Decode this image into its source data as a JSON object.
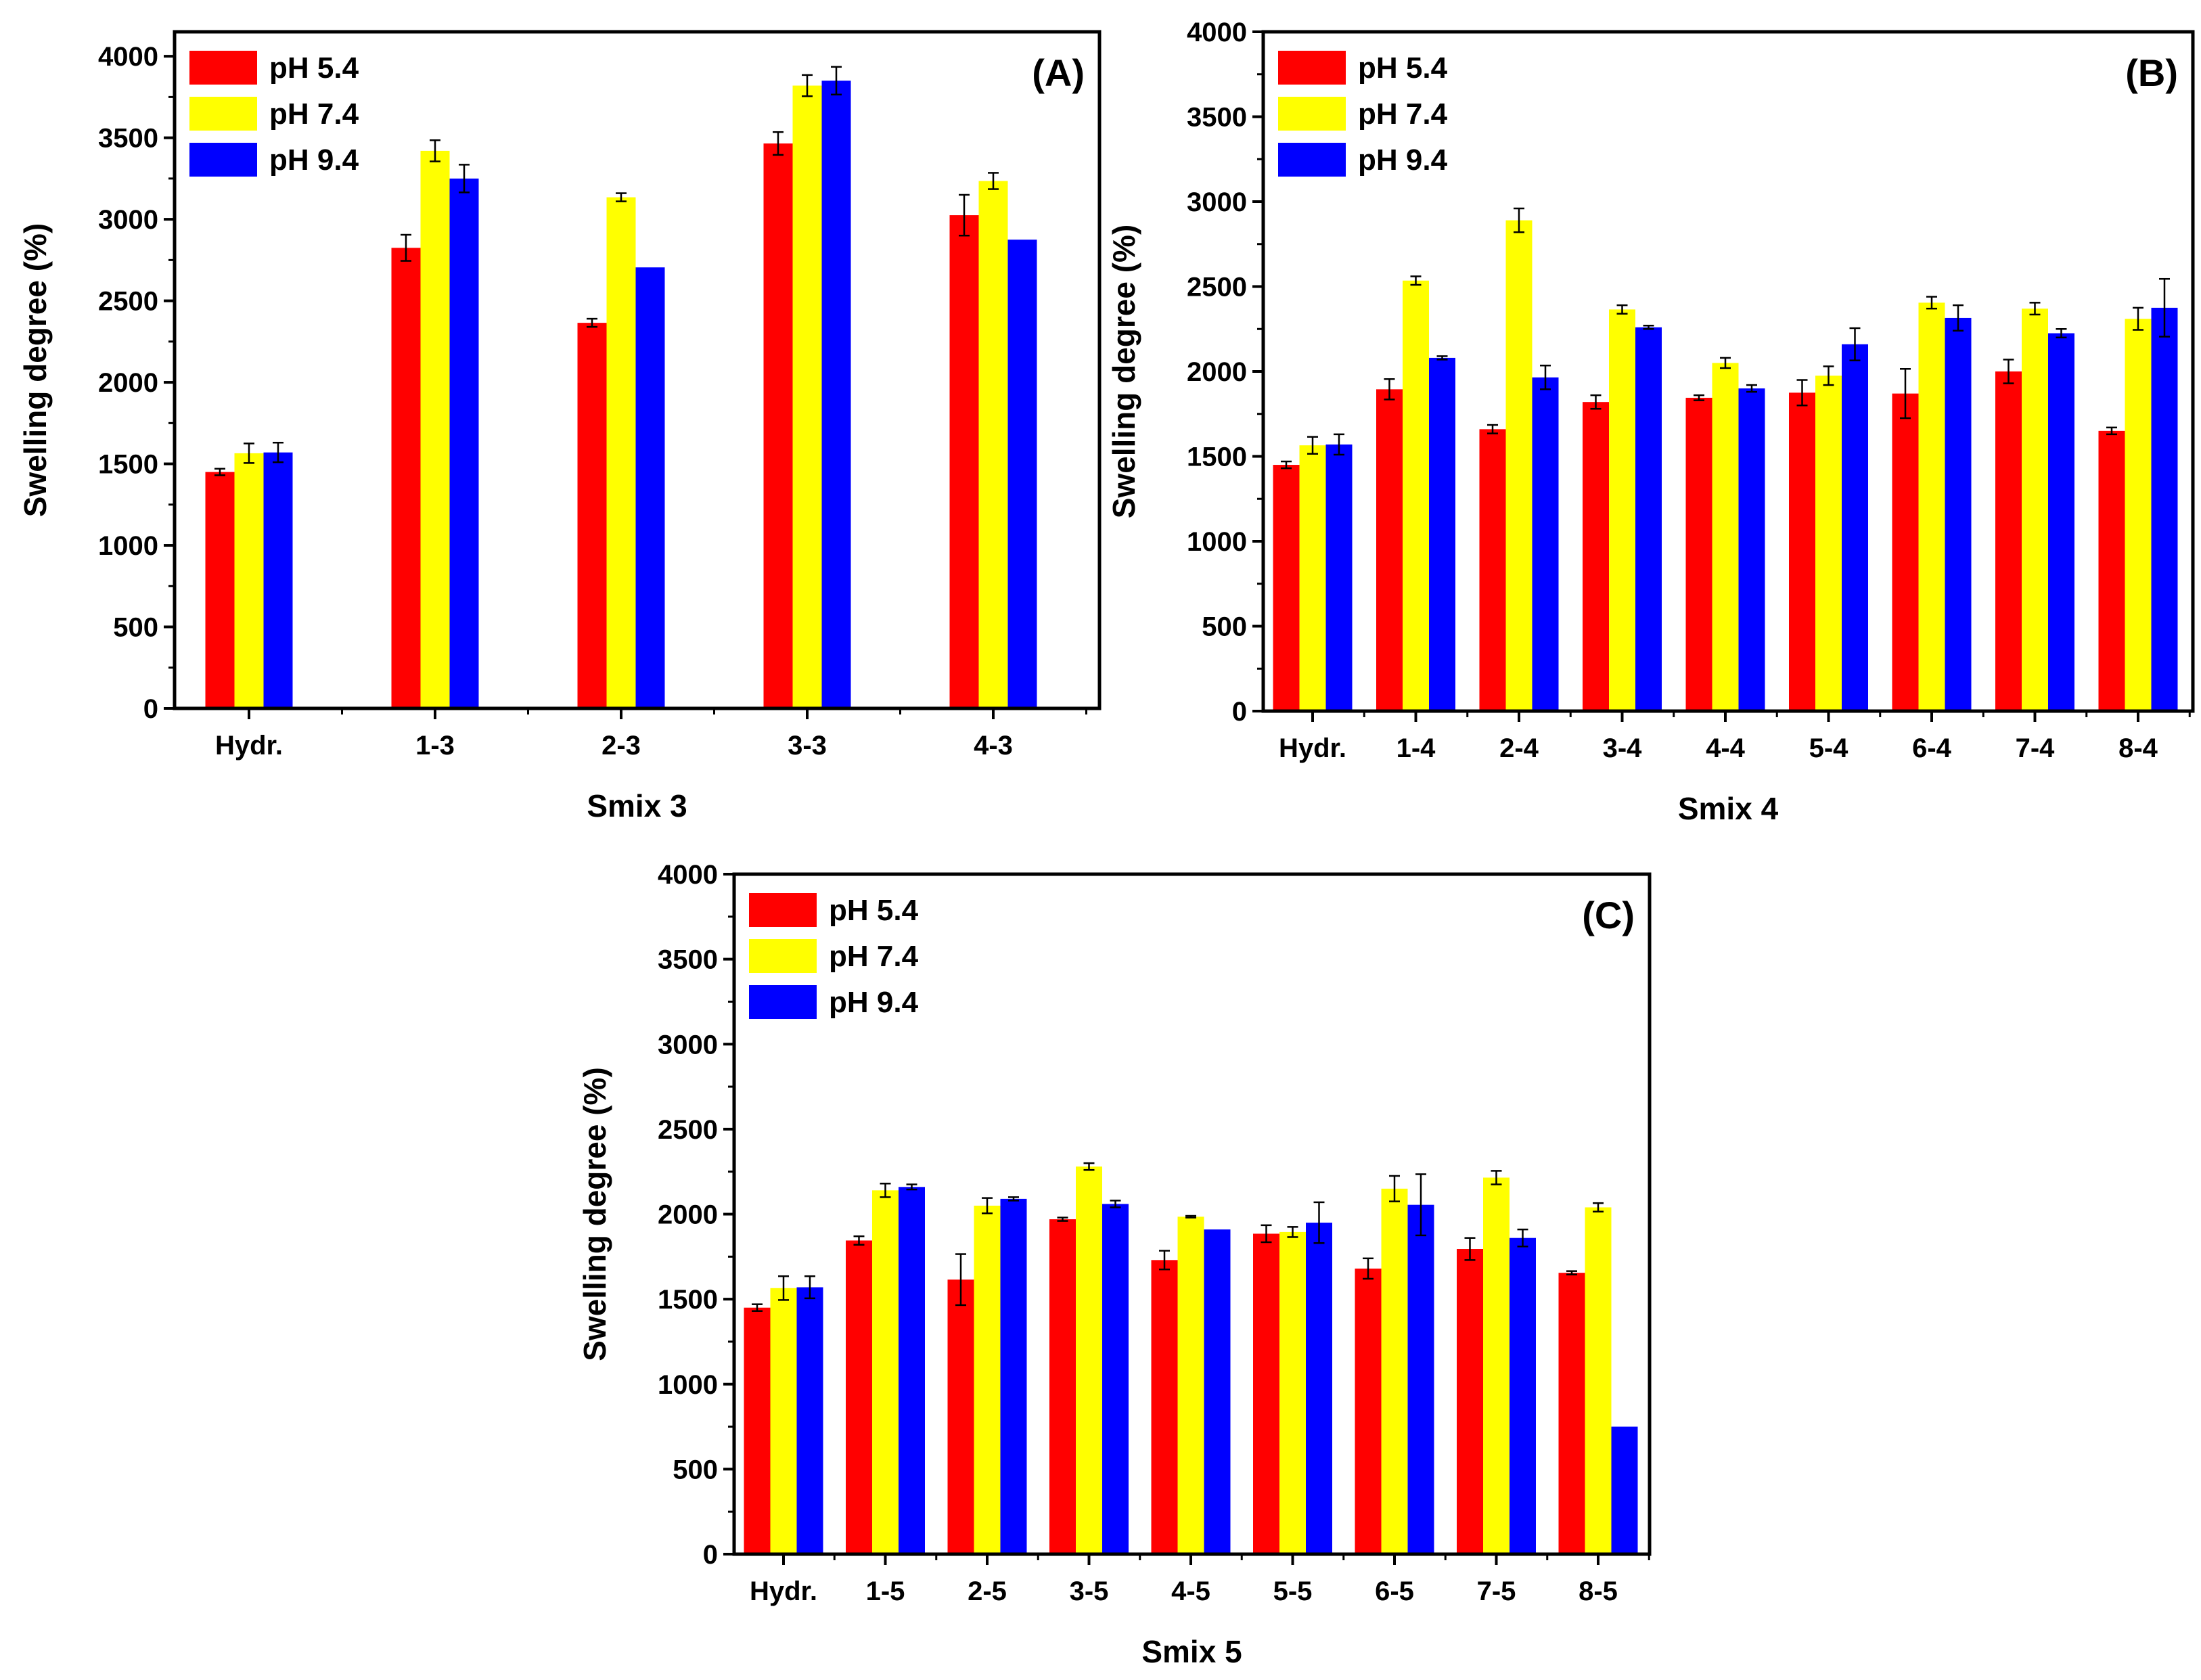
{
  "chart_data": [
    {
      "type": "bar",
      "panel_label": "(A)",
      "xlabel": "Smix 3",
      "ylabel": "Swelling degree (%)",
      "ylim": [
        0,
        4150
      ],
      "yticks": [
        0,
        500,
        1000,
        1500,
        2000,
        2500,
        3000,
        3500,
        4000
      ],
      "categories": [
        "Hydr.",
        "1-3",
        "2-3",
        "3-3",
        "4-3"
      ],
      "series": [
        {
          "name": "pH 5.4",
          "color": "#ff0000",
          "values": [
            1450,
            2825,
            2365,
            3465,
            3025
          ],
          "errors": [
            20,
            80,
            25,
            70,
            125
          ]
        },
        {
          "name": "pH 7.4",
          "color": "#ffff00",
          "values": [
            1565,
            3420,
            3135,
            3820,
            3235
          ],
          "errors": [
            60,
            65,
            25,
            65,
            50
          ]
        },
        {
          "name": "pH 9.4",
          "color": "#0000ff",
          "values": [
            1570,
            3250,
            2705,
            3850,
            2875
          ],
          "errors": [
            60,
            85,
            0,
            85,
            0
          ]
        }
      ]
    },
    {
      "type": "bar",
      "panel_label": "(B)",
      "xlabel": "Smix 4",
      "ylabel": "Swelling degree (%)",
      "ylim": [
        0,
        4000
      ],
      "yticks": [
        0,
        500,
        1000,
        1500,
        2000,
        2500,
        3000,
        3500,
        4000
      ],
      "categories": [
        "Hydr.",
        "1-4",
        "2-4",
        "3-4",
        "4-4",
        "5-4",
        "6-4",
        "7-4",
        "8-4"
      ],
      "series": [
        {
          "name": "pH 5.4",
          "color": "#ff0000",
          "values": [
            1450,
            1895,
            1660,
            1820,
            1845,
            1875,
            1870,
            2000,
            1650
          ],
          "errors": [
            20,
            60,
            25,
            40,
            15,
            75,
            145,
            70,
            20
          ]
        },
        {
          "name": "pH 7.4",
          "color": "#ffff00",
          "values": [
            1565,
            2535,
            2890,
            2365,
            2050,
            1975,
            2405,
            2370,
            2310
          ],
          "errors": [
            50,
            25,
            70,
            25,
            30,
            55,
            35,
            35,
            65
          ]
        },
        {
          "name": "pH 9.4",
          "color": "#0000ff",
          "values": [
            1570,
            2080,
            1965,
            2260,
            1900,
            2160,
            2315,
            2225,
            2375
          ],
          "errors": [
            60,
            10,
            70,
            10,
            20,
            95,
            75,
            25,
            170
          ]
        }
      ]
    },
    {
      "type": "bar",
      "panel_label": "(C)",
      "xlabel": "Smix 5",
      "ylabel": "Swelling degree (%)",
      "ylim": [
        0,
        4000
      ],
      "yticks": [
        0,
        500,
        1000,
        1500,
        2000,
        2500,
        3000,
        3500,
        4000
      ],
      "categories": [
        "Hydr.",
        "1-5",
        "2-5",
        "3-5",
        "4-5",
        "5-5",
        "6-5",
        "7-5",
        "8-5"
      ],
      "series": [
        {
          "name": "pH 5.4",
          "color": "#ff0000",
          "values": [
            1450,
            1845,
            1615,
            1970,
            1730,
            1885,
            1680,
            1795,
            1655
          ],
          "errors": [
            20,
            25,
            150,
            10,
            55,
            50,
            60,
            65,
            10
          ]
        },
        {
          "name": "pH 7.4",
          "color": "#ffff00",
          "values": [
            1565,
            2140,
            2050,
            2280,
            1985,
            1895,
            2150,
            2215,
            2040
          ],
          "errors": [
            70,
            40,
            45,
            20,
            5,
            30,
            75,
            40,
            25
          ]
        },
        {
          "name": "pH 9.4",
          "color": "#0000ff",
          "values": [
            1570,
            2160,
            2090,
            2060,
            1910,
            1950,
            2055,
            1860,
            750
          ],
          "errors": [
            65,
            15,
            10,
            20,
            0,
            120,
            180,
            50,
            0
          ]
        }
      ]
    }
  ]
}
